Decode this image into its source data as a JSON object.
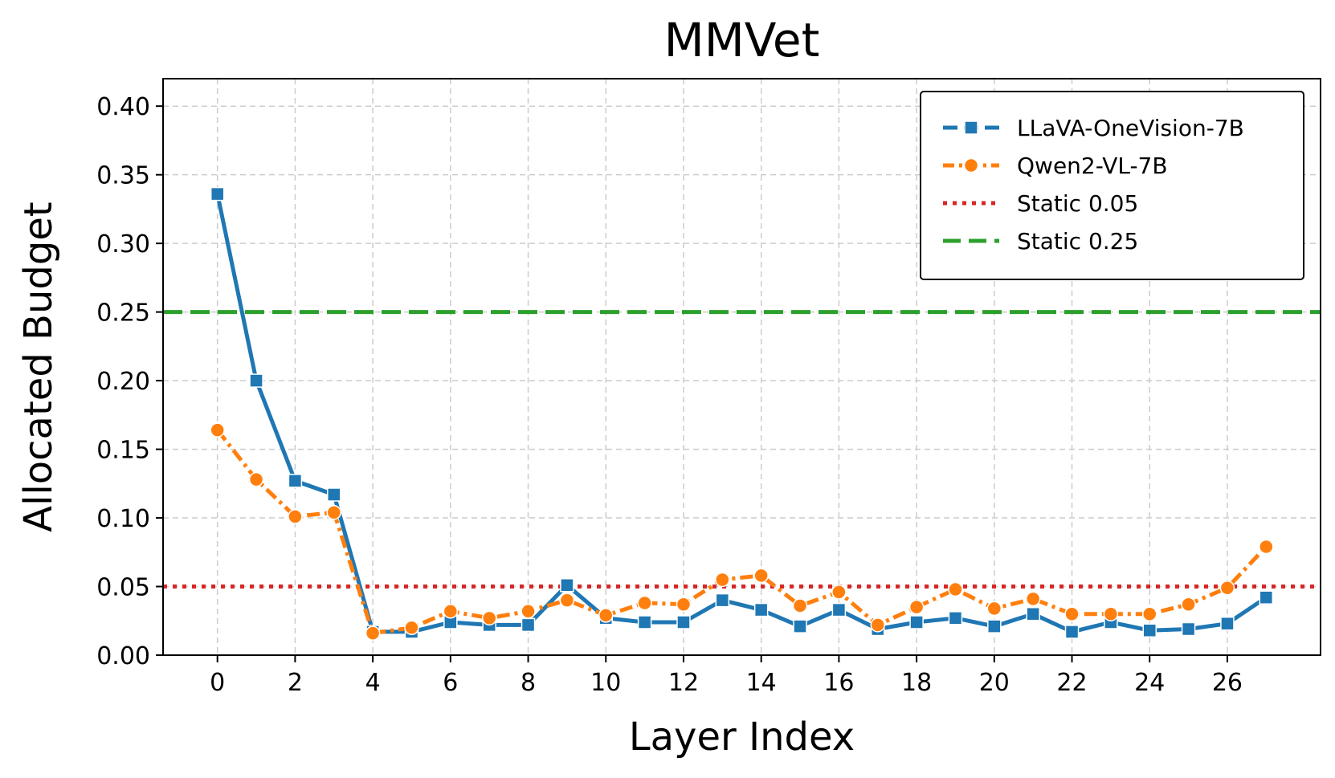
{
  "chart_data": {
    "type": "line",
    "title": "MMVet",
    "xlabel": "Layer Index",
    "ylabel": "Allocated Budget",
    "xlim": [
      -1.4,
      28.4
    ],
    "ylim": [
      0,
      0.42
    ],
    "xticks": [
      0,
      2,
      4,
      6,
      8,
      10,
      12,
      14,
      16,
      18,
      20,
      22,
      24,
      26
    ],
    "xtick_labels": [
      "0",
      "2",
      "4",
      "6",
      "8",
      "10",
      "12",
      "14",
      "16",
      "18",
      "20",
      "22",
      "24",
      "26"
    ],
    "yticks": [
      0,
      0.05,
      0.1,
      0.15,
      0.2,
      0.25,
      0.3,
      0.35,
      0.4
    ],
    "ytick_labels": [
      "0.00",
      "0.05",
      "0.10",
      "0.15",
      "0.20",
      "0.25",
      "0.30",
      "0.35",
      "0.40"
    ],
    "grid": true,
    "legend_position": "top-right",
    "x": [
      0,
      1,
      2,
      3,
      4,
      5,
      6,
      7,
      8,
      9,
      10,
      11,
      12,
      13,
      14,
      15,
      16,
      17,
      18,
      19,
      20,
      21,
      22,
      23,
      24,
      25,
      26,
      27
    ],
    "series": [
      {
        "name": "LLaVA-OneVision-7B",
        "color": "#1f77b4",
        "style": "solid",
        "marker": "square",
        "values": [
          0.336,
          0.2,
          0.127,
          0.117,
          0.017,
          0.017,
          0.024,
          0.022,
          0.022,
          0.051,
          0.027,
          0.024,
          0.024,
          0.04,
          0.033,
          0.021,
          0.033,
          0.019,
          0.024,
          0.027,
          0.021,
          0.03,
          0.017,
          0.024,
          0.018,
          0.019,
          0.023,
          0.042
        ]
      },
      {
        "name": "Qwen2-VL-7B",
        "color": "#ff7f0e",
        "style": "dashdot",
        "marker": "circle",
        "values": [
          0.164,
          0.128,
          0.101,
          0.104,
          0.016,
          0.02,
          0.032,
          0.027,
          0.032,
          0.04,
          0.029,
          0.038,
          0.037,
          0.055,
          0.058,
          0.036,
          0.046,
          0.022,
          0.035,
          0.048,
          0.034,
          0.041,
          0.03,
          0.03,
          0.03,
          0.037,
          0.049,
          0.079
        ]
      }
    ],
    "reference_lines": [
      {
        "name": "Static 0.05",
        "value": 0.05,
        "color": "#d62728",
        "style": "dotted"
      },
      {
        "name": "Static 0.25",
        "value": 0.25,
        "color": "#2ca02c",
        "style": "dashed"
      }
    ]
  }
}
